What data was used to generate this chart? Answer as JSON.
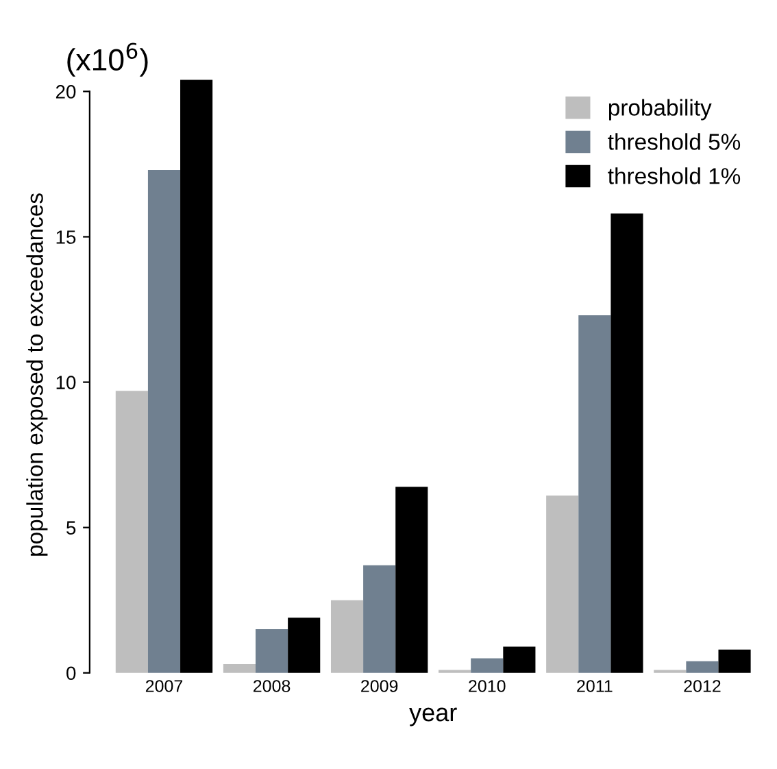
{
  "chart_data": {
    "type": "bar",
    "xlabel": "year",
    "ylabel": "population exposed to exceedances",
    "annotations": [
      "(x10$^{6}$)"
    ],
    "categories": [
      "2007",
      "2008",
      "2009",
      "2010",
      "2011",
      "2012"
    ],
    "series": [
      {
        "name": "probability",
        "color": "#bebebe",
        "values": [
          9.7,
          0.3,
          2.5,
          0.1,
          6.1,
          0.1
        ]
      },
      {
        "name": "threshold 5%",
        "color": "#708090",
        "values": [
          17.3,
          1.5,
          3.7,
          0.5,
          12.3,
          0.4
        ]
      },
      {
        "name": "threshold 1%",
        "color": "#000000",
        "values": [
          20.4,
          1.9,
          6.4,
          0.9,
          15.8,
          0.8
        ]
      }
    ],
    "ylim": [
      0,
      20.5
    ],
    "yticks": [
      0,
      5,
      10,
      15,
      20
    ],
    "grid": false,
    "legend": "top right"
  }
}
